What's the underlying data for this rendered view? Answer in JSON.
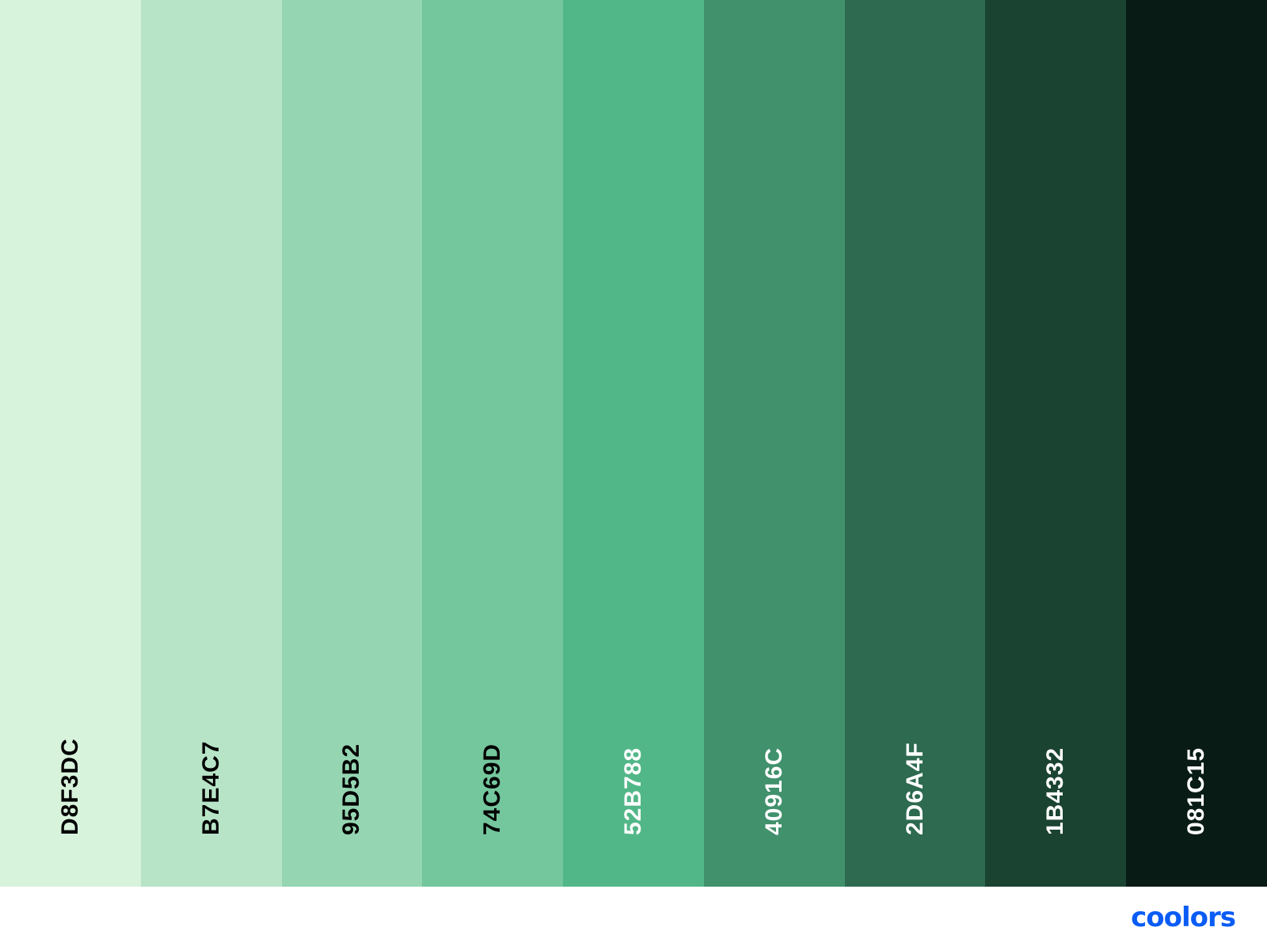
{
  "swatches": [
    {
      "hex": "D8F3DC",
      "color": "#D8F3DC",
      "text_color": "#000000"
    },
    {
      "hex": "B7E4C7",
      "color": "#B7E4C7",
      "text_color": "#000000"
    },
    {
      "hex": "95D5B2",
      "color": "#95D5B2",
      "text_color": "#000000"
    },
    {
      "hex": "74C69D",
      "color": "#74C69D",
      "text_color": "#000000"
    },
    {
      "hex": "52B788",
      "color": "#52B788",
      "text_color": "#ffffff"
    },
    {
      "hex": "40916C",
      "color": "#40916C",
      "text_color": "#ffffff"
    },
    {
      "hex": "2D6A4F",
      "color": "#2D6A4F",
      "text_color": "#ffffff"
    },
    {
      "hex": "1B4332",
      "color": "#1B4332",
      "text_color": "#ffffff"
    },
    {
      "hex": "081C15",
      "color": "#081C15",
      "text_color": "#ffffff"
    }
  ],
  "brand": {
    "name": "coolors",
    "color": "#0A5CF5"
  }
}
